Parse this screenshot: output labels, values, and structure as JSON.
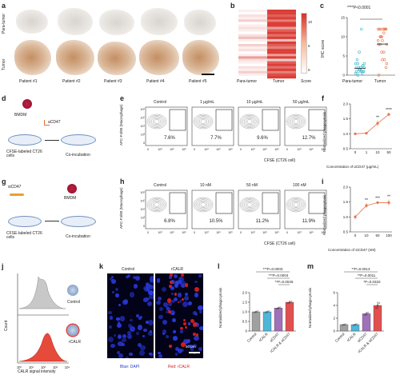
{
  "panels": {
    "a": {
      "letter": "a",
      "row_labels": [
        "Para-tumor",
        "Tumor"
      ],
      "patients": [
        "Patient #1",
        "Patient #2",
        "Patient #3",
        "Patient #4",
        "Patient #5"
      ]
    },
    "b": {
      "letter": "b",
      "x_labels": [
        "Para-tumor",
        "Tumor"
      ],
      "colorbar_ticks": [
        "10",
        "5",
        "0"
      ],
      "colorbar_label": "Score"
    },
    "c": {
      "letter": "c",
      "ylabel": "IHC score",
      "stat": "****P<0.0001",
      "y_ticks": [
        "15",
        "10",
        "5",
        "0"
      ],
      "x_labels": [
        "Para-tumor",
        "Tumor"
      ]
    },
    "d": {
      "letter": "d",
      "bmdm": "BMDM",
      "antibody": "aCD47",
      "cells": "CFSE-labeled CT26 cells",
      "step": "Co-incubation"
    },
    "e": {
      "letter": "e",
      "conditions": [
        "Control",
        "1 μg/mL",
        "10 μg/mL",
        "50 μg/mL"
      ],
      "percents": [
        "7.6%",
        "7.7%",
        "9.6%",
        "12.7%"
      ],
      "ylabel": "APC-F4/80 (Macrophage)",
      "xlabel": "CFSE (CT26 cell)",
      "y_ticks": [
        "10⁶",
        "10⁵",
        "10⁴",
        "10³",
        "0"
      ],
      "x_ticks": [
        "0",
        "10³",
        "10⁵",
        "10⁶"
      ]
    },
    "f": {
      "letter": "f",
      "ylabel": "Normalized phagocytosis",
      "xlabel": "Concentration of αCD47 (μg/mL)",
      "x_ticks": [
        "0",
        "1",
        "10",
        "50"
      ],
      "y_ticks": [
        "2.0",
        "1.5",
        "1.0",
        "0.5"
      ],
      "sig": [
        "",
        "",
        "**",
        "****"
      ]
    },
    "g": {
      "letter": "g",
      "agent": "siCD47",
      "bmdm": "BMDM",
      "cells": "CFSE-labeled CT26 cells",
      "step": "Co-incubation"
    },
    "h": {
      "letter": "h",
      "conditions": [
        "Control",
        "10 nM",
        "50 nM",
        "100 nM"
      ],
      "percents": [
        "6.8%",
        "10.5%",
        "11.2%",
        "11.9%"
      ],
      "ylabel": "APC-F4/80 (Macrophage)",
      "xlabel": "CFSE (CT26 cell)",
      "y_ticks": [
        "10⁶",
        "10⁵",
        "10⁴",
        "10³",
        "0"
      ],
      "x_ticks": [
        "0",
        "10³",
        "10⁵",
        "10⁶"
      ]
    },
    "i": {
      "letter": "i",
      "ylabel": "Normalized phagocytosis",
      "xlabel": "Concentration of siCD47 (nM)",
      "x_ticks": [
        "0",
        "10",
        "50",
        "100"
      ],
      "y_ticks": [
        "2.0",
        "1.5",
        "1.0",
        "0.5"
      ],
      "sig": [
        "",
        "**",
        "***",
        "**"
      ]
    },
    "j": {
      "letter": "j",
      "ylabel": "Count",
      "xlabel": "CALR signal intensity",
      "x_ticks": [
        "10⁰",
        "10¹",
        "10²",
        "10³",
        "10⁴"
      ],
      "legend": [
        "Control",
        "rCALR"
      ]
    },
    "k": {
      "letter": "k",
      "titles": [
        "Control",
        "rCALR"
      ],
      "scale": "50 μm",
      "stain_blue": "Blue: DAPI",
      "stain_red": "Red: rCALR"
    },
    "l": {
      "letter": "l",
      "ylabel": "Normalized phagocytosis",
      "y_ticks": [
        "2.0",
        "1.5",
        "1.0",
        "0.5",
        "0"
      ],
      "categories": [
        "Control",
        "rCALR",
        "αCD47",
        "rCALR & αCD47"
      ],
      "stats": [
        "***P=0.0003",
        "***P=0.0004",
        "**P=0.0045"
      ]
    },
    "m": {
      "letter": "m",
      "ylabel": "Normalized phagocytosis",
      "y_ticks": [
        "6",
        "4",
        "2",
        "0"
      ],
      "categories": [
        "Control",
        "rCALR",
        "siCD47",
        "rCALR & siCD47"
      ],
      "stats": [
        "**P=0.0013",
        "**P=0.0011",
        "*P=0.0332"
      ]
    }
  },
  "colors": {
    "orange": "#e8744a",
    "red_heat": "#d73027",
    "teal": "#36b5c8",
    "gray_bar": "#a0a0a0",
    "blue_bar": "#4fb6d6",
    "purple_bar": "#a070b8",
    "red_bar": "#e05050"
  },
  "chart_data": [
    {
      "type": "scatter",
      "panel": "c",
      "categories": [
        "Para-tumor",
        "Tumor"
      ],
      "series": [
        {
          "values": [
            0.5,
            1,
            1,
            2,
            1.5,
            0,
            2,
            3,
            2.5,
            1,
            1.5,
            2,
            4,
            3,
            1,
            0.5,
            2,
            6,
            3,
            1,
            2,
            2.5,
            12,
            1.5,
            1
          ]
        },
        {
          "values": [
            12,
            12,
            12,
            12,
            10,
            10,
            8,
            8,
            12,
            6,
            4,
            12,
            12,
            9,
            2,
            4,
            12,
            6,
            8,
            0,
            3,
            12,
            11,
            9,
            10
          ]
        }
      ],
      "means": [
        1.8,
        8.1
      ],
      "ylim": [
        0,
        15
      ]
    },
    {
      "type": "line",
      "panel": "f",
      "x": [
        "0",
        "1",
        "10",
        "50"
      ],
      "values": [
        1.0,
        1.02,
        1.35,
        1.65
      ],
      "errors": [
        0.02,
        0.04,
        0.1,
        0.06
      ],
      "ylim": [
        0.5,
        2.0
      ]
    },
    {
      "type": "line",
      "panel": "i",
      "x": [
        "0",
        "10",
        "50",
        "100"
      ],
      "values": [
        1.0,
        1.38,
        1.48,
        1.48
      ],
      "errors": [
        0.08,
        0.08,
        0.05,
        0.1
      ],
      "ylim": [
        0.5,
        2.0
      ]
    },
    {
      "type": "bar",
      "panel": "l",
      "categories": [
        "Control",
        "rCALR",
        "αCD47",
        "rCALR & αCD47"
      ],
      "values": [
        1.0,
        1.0,
        1.2,
        1.5
      ],
      "errors": [
        0.05,
        0.05,
        0.06,
        0.07
      ],
      "ylim": [
        0,
        2.0
      ]
    },
    {
      "type": "bar",
      "panel": "m",
      "categories": [
        "Control",
        "rCALR",
        "siCD47",
        "rCALR & siCD47"
      ],
      "values": [
        1.0,
        1.0,
        2.7,
        4.0
      ],
      "errors": [
        0.1,
        0.1,
        0.3,
        0.6
      ],
      "ylim": [
        0,
        6
      ]
    }
  ]
}
